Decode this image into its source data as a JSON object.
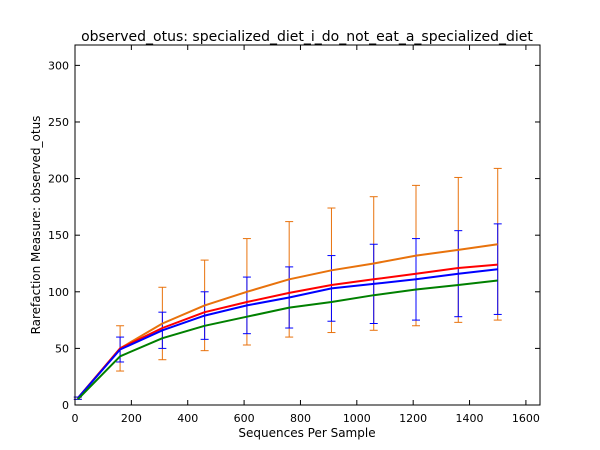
{
  "chart_data": {
    "type": "line",
    "title": "observed_otus: specialized_diet_i_do_not_eat_a_specialized_diet",
    "xlabel": "Sequences Per Sample",
    "ylabel": "Rarefaction Measure: observed_otus",
    "xlim": [
      0,
      1650
    ],
    "ylim": [
      0,
      318
    ],
    "xticks": [
      0,
      200,
      400,
      600,
      800,
      1000,
      1200,
      1400,
      1600
    ],
    "yticks": [
      0,
      50,
      100,
      150,
      200,
      250,
      300
    ],
    "grid": false,
    "legend": "none",
    "x": [
      10,
      160,
      310,
      460,
      610,
      760,
      910,
      1060,
      1210,
      1360,
      1500
    ],
    "series": [
      {
        "color": "#e8720c",
        "values": [
          6,
          50,
          72,
          88,
          100,
          111,
          119,
          125,
          132,
          137,
          142
        ],
        "errors": [
          1,
          20,
          32,
          40,
          47,
          51,
          55,
          59,
          62,
          64,
          67
        ]
      },
      {
        "color": "#ff0000",
        "values": [
          6,
          50,
          68,
          82,
          91,
          99,
          106,
          111,
          116,
          121,
          124
        ],
        "errors": null
      },
      {
        "color": "#0000ff",
        "values": [
          6,
          49,
          66,
          79,
          88,
          95,
          103,
          107,
          111,
          116,
          120
        ],
        "errors": [
          1,
          11,
          16,
          21,
          25,
          27,
          29,
          35,
          36,
          38,
          40
        ]
      },
      {
        "color": "#008000",
        "values": [
          5,
          43,
          59,
          70,
          78,
          86,
          91,
          97,
          102,
          106,
          110
        ],
        "errors": null
      }
    ]
  }
}
